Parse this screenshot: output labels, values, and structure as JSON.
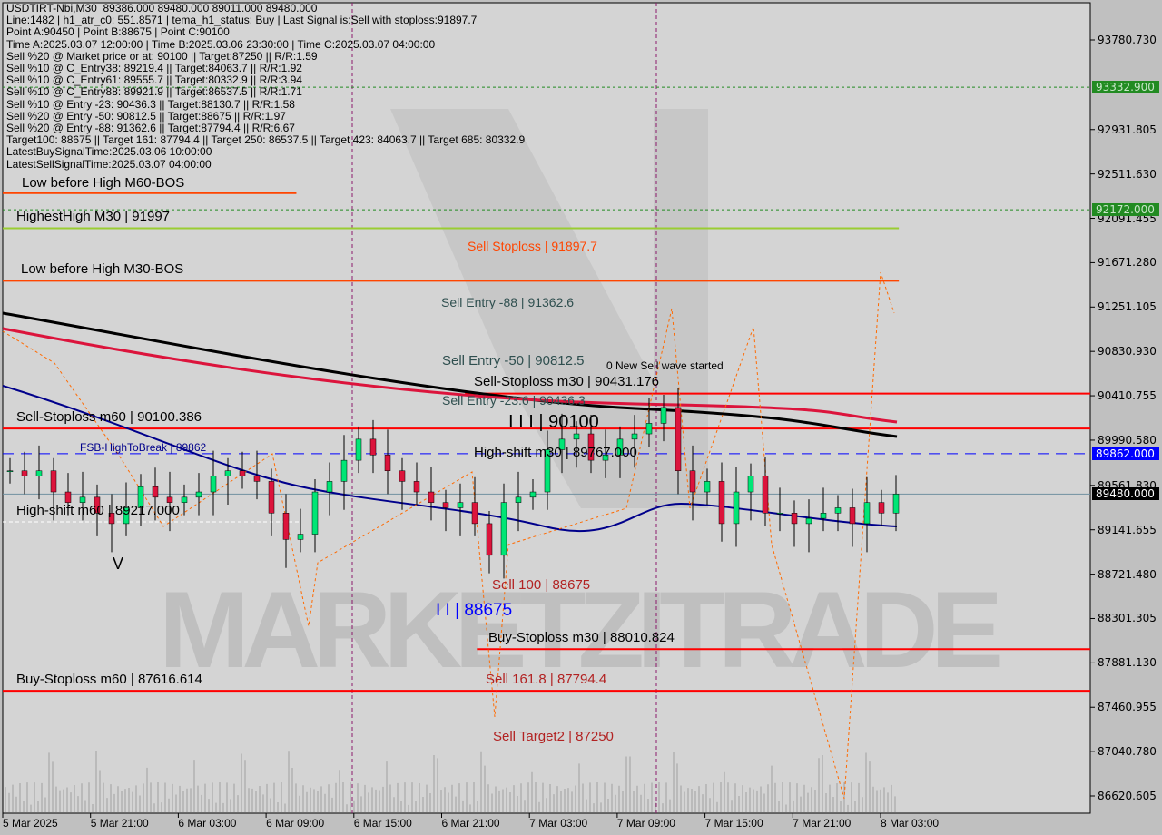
{
  "header": {
    "lines": [
      "USDTIRT-Nbi,M30  89386.000 89480.000 89011.000 89480.000",
      "Line:1482 | h1_atr_c0: 551.8571 | tema_h1_status: Buy | Last Signal is:Sell with stoploss:91897.7",
      "Point A:90450 | Point B:88675 | Point C:90100",
      "Time A:2025.03.07 12:00:00 | Time B:2025.03.06 23:30:00 | Time C:2025.03.07 04:00:00",
      "Sell %20 @ Market price or at: 90100 || Target:87250 || R/R:1.59",
      "Sell %10 @ C_Entry38: 89219.4 || Target:84063.7 || R/R:1.92",
      "Sell %10 @ C_Entry61: 89555.7 || Target:80332.9 || R/R:3.94",
      "Sell %10 @ C_Entry88: 89921.9 || Target:86537.5 || R/R:1.71",
      "Sell %10 @ Entry -23: 90436.3 || Target:88130.7 || R/R:1.58",
      "Sell %20 @ Entry -50: 90812.5 || Target:88675 || R/R:1.97",
      "Sell %20 @ Entry -88: 91362.6 || Target:87794.4 || R/R:6.67",
      "Target100: 88675 || Target 161: 87794.4 || Target 250: 86537.5 || Target 423: 84063.7 || Target 685: 80332.9",
      "LatestBuySignalTime:2025.03.06 10:00:00",
      "LatestSellSignalTime:2025.03.07 04:00:00"
    ]
  },
  "watermark": "MARKETZITRADE",
  "colors": {
    "bull": "#00e676",
    "bear": "#dc143c",
    "level_red": "#ff0000",
    "level_orange": "#ff4500",
    "blue_dash": "#0000ff",
    "ma_black": "#000000",
    "ma_red": "#dc143c",
    "ma_blue": "#00008b"
  },
  "chart_data": {
    "type": "candlestick",
    "symbol": "USDTIRT-Nbi",
    "timeframe": "M30",
    "ylim": [
      86450,
      93950
    ],
    "y_ticks": [
      "93780.730",
      "92931.805",
      "92511.630",
      "92091.455",
      "91671.280",
      "91251.105",
      "90830.930",
      "90410.755",
      "89990.580",
      "89561.830",
      "89141.655",
      "88721.480",
      "88301.305",
      "87881.130",
      "87460.955",
      "87040.780",
      "86620.605"
    ],
    "x_ticks": [
      "5 Mar 2025",
      "5 Mar 21:00",
      "6 Mar 03:00",
      "6 Mar 09:00",
      "6 Mar 15:00",
      "6 Mar 21:00",
      "7 Mar 03:00",
      "7 Mar 09:00",
      "7 Mar 15:00",
      "7 Mar 21:00",
      "8 Mar 03:00"
    ],
    "price_tags": [
      {
        "text": "93332.900",
        "price": 93332.9,
        "bg": "#228b22",
        "fg": "#c8e6c8"
      },
      {
        "text": "92172.000",
        "price": 92172.0,
        "bg": "#228b22",
        "fg": "#c8e6c8"
      },
      {
        "text": "89862.000",
        "price": 89862.0,
        "bg": "#0000ff",
        "fg": "#ffffff"
      },
      {
        "text": "89480.000",
        "price": 89480.0,
        "bg": "#000000",
        "fg": "#ffffff"
      }
    ],
    "closes": [
      89700,
      89650,
      89700,
      89500,
      89400,
      89450,
      89300,
      89200,
      89350,
      89550,
      89450,
      89400,
      89450,
      89500,
      89650,
      89700,
      89650,
      89600,
      89300,
      89050,
      89100,
      89500,
      89600,
      89800,
      90000,
      89850,
      89700,
      89600,
      89500,
      89400,
      89350,
      89400,
      89200,
      88900,
      89400,
      89450,
      89500,
      89900,
      90000,
      90050,
      89800,
      89850,
      90000,
      90050,
      90150,
      90300,
      89700,
      89500,
      89600,
      89200,
      89500,
      89650,
      89300,
      89300,
      89200,
      89250,
      89300,
      89350,
      89200,
      89400,
      89300,
      89480
    ],
    "levels": [
      {
        "text": "Low before High    M60-BOS",
        "price": 92330,
        "color": "#ff4500",
        "from": 0,
        "to": 0.27,
        "label_color": "#000"
      },
      {
        "text": "HighestHigh    M30 | 91997",
        "price": 91997,
        "color": "#9acd32",
        "from": 0,
        "to": 0.824,
        "label_color": "#000"
      },
      {
        "text": "Low before High    M30-BOS",
        "price": 91500,
        "color": "#ff4500",
        "from": 0,
        "to": 0.824,
        "label_color": "#000"
      },
      {
        "text": "Sell-Stoploss m30 | 90431.176",
        "price": 90431.176,
        "color": "#ff0000",
        "from": 0.425,
        "to": 1,
        "label_color": "#000"
      },
      {
        "text": "Sell-Stoploss m60 | 90100.386",
        "price": 90100.386,
        "color": "#ff0000",
        "from": 0,
        "to": 1,
        "label_color": "#000"
      },
      {
        "text": "Buy-Stoploss m30 | 88010.824",
        "price": 88010.824,
        "color": "#ff0000",
        "from": 0.436,
        "to": 1,
        "label_color": "#000"
      },
      {
        "text": "Buy-Stoploss m60 | 87616.614",
        "price": 87616.614,
        "color": "#ff0000",
        "from": 0,
        "to": 1,
        "label_color": "#000"
      }
    ],
    "annotations": [
      {
        "text": "Sell Stoploss | 91897.7",
        "color": "#ff4500"
      },
      {
        "text": "Sell Entry -88 | 91362.6",
        "color": "#2f4f4f"
      },
      {
        "text": "Sell Entry -50 | 90812.5",
        "color": "#2f4f4f"
      },
      {
        "text": "Sell Entry -23.6 | 90436.3",
        "color": "#2f4f4f"
      },
      {
        "text": "0 New Sell wave started",
        "color": "#000"
      },
      {
        "text": "I I I | 90100",
        "color": "#000"
      },
      {
        "text": "FSB-HighToBreak | 89862",
        "color": "#00008b"
      },
      {
        "text": "High-shift m30 | 89767.000",
        "color": "#000"
      },
      {
        "text": "High-shift m60 | 89217.000",
        "color": "#000"
      },
      {
        "text": "V",
        "color": "#000"
      },
      {
        "text": "Sell 100 | 88675",
        "color": "#b22222"
      },
      {
        "text": "I I | 88675",
        "color": "#0000ff"
      },
      {
        "text": "Sell 161.8 | 87794.4",
        "color": "#b22222"
      },
      {
        "text": "Sell Target2 | 87250",
        "color": "#b22222"
      }
    ]
  }
}
